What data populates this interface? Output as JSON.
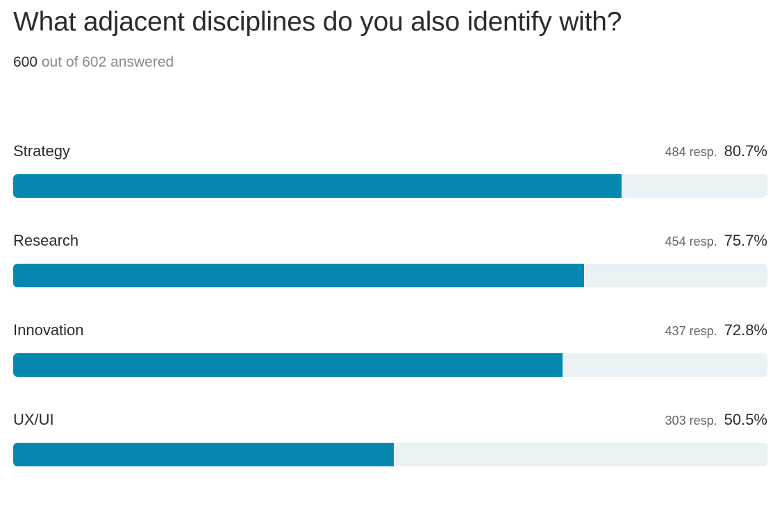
{
  "question": {
    "title": "What adjacent disciplines do you also identify with?",
    "answered_count": "600",
    "answered_suffix": " out of 602 answered"
  },
  "colors": {
    "bar_fill": "#0488b0",
    "bar_track": "#e9f1f5"
  },
  "chart_data": {
    "type": "bar",
    "orientation": "horizontal",
    "title": "What adjacent disciplines do you also identify with?",
    "xlim": [
      0,
      100
    ],
    "categories": [
      "Strategy",
      "Research",
      "Innovation",
      "UX/UI"
    ],
    "values": [
      80.7,
      75.7,
      72.8,
      50.5
    ],
    "responses": [
      "484 resp.",
      "454 resp.",
      "437 resp.",
      "303 resp."
    ],
    "percent_labels": [
      "80.7%",
      "75.7%",
      "72.8%",
      "50.5%"
    ],
    "grid": false,
    "legend": "none"
  }
}
